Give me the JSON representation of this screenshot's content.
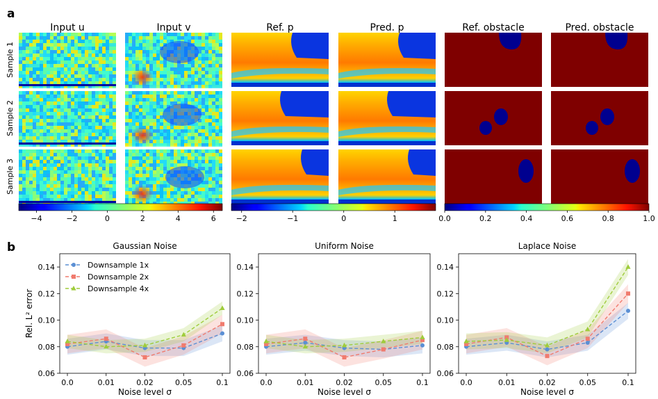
{
  "panel_labels": [
    "a",
    "b"
  ],
  "heatmaps": {
    "columns": [
      "Input u",
      "Input v",
      "Ref. p",
      "Pred. p",
      "Ref. obstacle",
      "Pred. obstacle"
    ],
    "rows": [
      "Sample 1",
      "Sample 2",
      "Sample 3"
    ],
    "colorbars": [
      {
        "min": -5,
        "max": 6.5,
        "ticks": [
          "−4",
          "−2",
          "0",
          "2",
          "4",
          "6"
        ],
        "tick_values": [
          -4,
          -2,
          0,
          2,
          4,
          6
        ]
      },
      {
        "min": -2.2,
        "max": 1.8,
        "ticks": [
          "−2",
          "−1",
          "0",
          "1"
        ],
        "tick_values": [
          -2,
          -1,
          0,
          1
        ]
      },
      {
        "min": 0,
        "max": 1,
        "ticks": [
          "0.0",
          "0.2",
          "0.4",
          "0.6",
          "0.8",
          "1.0"
        ],
        "tick_values": [
          0,
          0.2,
          0.4,
          0.6,
          0.8,
          1.0
        ]
      }
    ]
  },
  "chart_data": [
    {
      "type": "line",
      "title": "Gaussian Noise",
      "xlabel": "Noise level σ",
      "ylabel": "Rel. L² error",
      "categories": [
        "0.0",
        "0.01",
        "0.02",
        "0.05",
        "0.1"
      ],
      "ylim": [
        0.06,
        0.15
      ],
      "yticks": [
        0.06,
        0.08,
        0.1,
        0.12,
        0.14
      ],
      "legend": "top-left",
      "series": [
        {
          "name": "Downsample 1x",
          "color": "#5b8fd4",
          "marker": "circle",
          "values": [
            0.08,
            0.084,
            0.079,
            0.079,
            0.09
          ],
          "band": 0.006
        },
        {
          "name": "Downsample 2x",
          "color": "#f07b6e",
          "marker": "square",
          "values": [
            0.082,
            0.086,
            0.072,
            0.081,
            0.097
          ],
          "band": 0.007
        },
        {
          "name": "Downsample 4x",
          "color": "#9fcc3b",
          "marker": "triangle",
          "values": [
            0.084,
            0.08,
            0.081,
            0.089,
            0.109
          ],
          "band": 0.005
        }
      ]
    },
    {
      "type": "line",
      "title": "Uniform Noise",
      "xlabel": "Noise level σ",
      "ylabel": "",
      "categories": [
        "0.0",
        "0.01",
        "0.02",
        "0.05",
        "0.1"
      ],
      "ylim": [
        0.06,
        0.15
      ],
      "yticks": [
        0.06,
        0.08,
        0.1,
        0.12,
        0.14
      ],
      "series": [
        {
          "name": "Downsample 1x",
          "color": "#5b8fd4",
          "marker": "circle",
          "values": [
            0.08,
            0.083,
            0.079,
            0.078,
            0.081
          ],
          "band": 0.006
        },
        {
          "name": "Downsample 2x",
          "color": "#f07b6e",
          "marker": "square",
          "values": [
            0.082,
            0.086,
            0.072,
            0.078,
            0.085
          ],
          "band": 0.007
        },
        {
          "name": "Downsample 4x",
          "color": "#9fcc3b",
          "marker": "triangle",
          "values": [
            0.084,
            0.08,
            0.081,
            0.084,
            0.087
          ],
          "band": 0.005
        }
      ]
    },
    {
      "type": "line",
      "title": "Laplace Noise",
      "xlabel": "Noise level σ",
      "ylabel": "",
      "categories": [
        "0.0",
        "0.01",
        "0.02",
        "0.05",
        "0.1"
      ],
      "ylim": [
        0.06,
        0.15
      ],
      "yticks": [
        0.06,
        0.08,
        0.1,
        0.12,
        0.14
      ],
      "series": [
        {
          "name": "Downsample 1x",
          "color": "#5b8fd4",
          "marker": "circle",
          "values": [
            0.08,
            0.083,
            0.078,
            0.083,
            0.107
          ],
          "band": 0.006
        },
        {
          "name": "Downsample 2x",
          "color": "#f07b6e",
          "marker": "square",
          "values": [
            0.082,
            0.087,
            0.073,
            0.086,
            0.12
          ],
          "band": 0.007
        },
        {
          "name": "Downsample 4x",
          "color": "#9fcc3b",
          "marker": "triangle",
          "values": [
            0.084,
            0.085,
            0.081,
            0.093,
            0.14
          ],
          "band": 0.006
        }
      ]
    }
  ]
}
